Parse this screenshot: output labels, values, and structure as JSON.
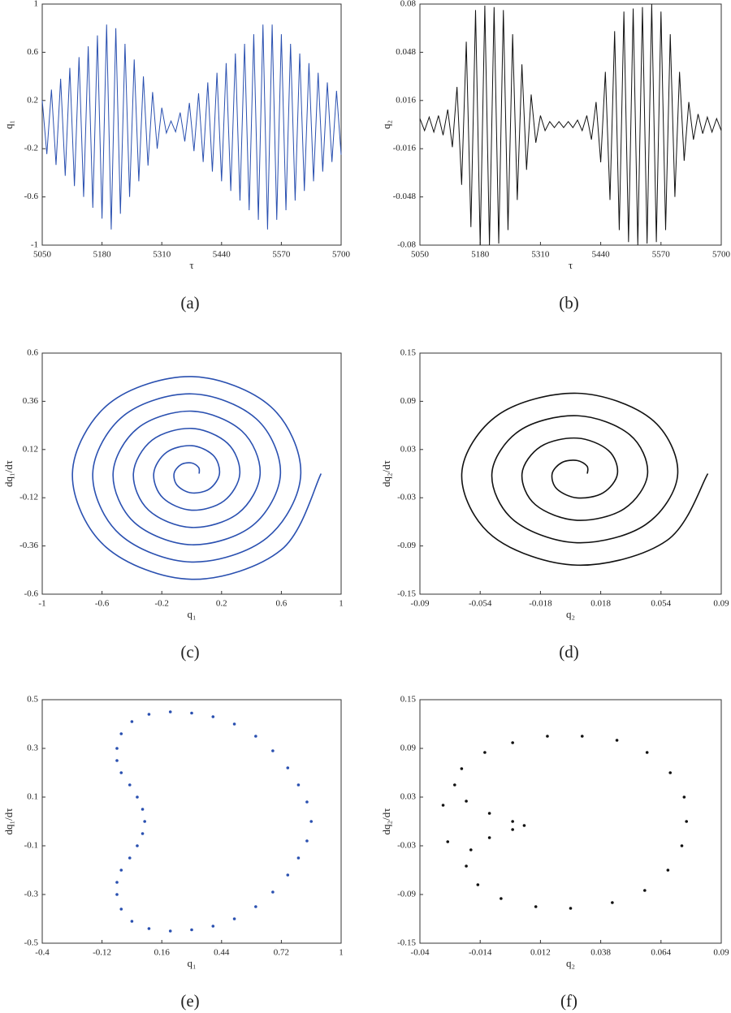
{
  "chart_data": [
    {
      "type": "line",
      "caption": "(a)",
      "xlabel": "τ",
      "ylabel": "q₁",
      "color": "#2a50b0",
      "smooth": false,
      "xlim": [
        5050,
        5700
      ],
      "xticks": [
        5050,
        5180,
        5310,
        5440,
        5570,
        5700
      ],
      "ylim": [
        -1,
        1
      ],
      "yticks": [
        -1,
        -0.6,
        -0.2,
        0.2,
        0.6,
        1
      ],
      "x": [
        5050,
        5060,
        5070,
        5080,
        5090,
        5100,
        5110,
        5120,
        5130,
        5140,
        5150,
        5160,
        5170,
        5180,
        5190,
        5200,
        5210,
        5220,
        5230,
        5240,
        5250,
        5260,
        5270,
        5280,
        5290,
        5300,
        5310,
        5320,
        5330,
        5340,
        5350,
        5360,
        5370,
        5380,
        5390,
        5400,
        5410,
        5420,
        5430,
        5440,
        5450,
        5460,
        5470,
        5480,
        5490,
        5500,
        5510,
        5520,
        5530,
        5540,
        5550,
        5560,
        5570,
        5580,
        5590,
        5600,
        5610,
        5620,
        5630,
        5640,
        5650,
        5660,
        5670,
        5680,
        5690,
        5700
      ],
      "values": [
        0.2,
        -0.245,
        0.29,
        -0.335,
        0.38,
        -0.425,
        0.47,
        -0.51,
        0.56,
        -0.6,
        0.65,
        -0.69,
        0.74,
        -0.78,
        0.83,
        -0.87,
        0.8,
        -0.74,
        0.67,
        -0.6,
        0.54,
        -0.47,
        0.4,
        -0.34,
        0.27,
        -0.2,
        0.14,
        -0.07,
        0.03,
        -0.06,
        0.1,
        -0.14,
        0.18,
        -0.22,
        0.26,
        -0.31,
        0.35,
        -0.39,
        0.43,
        -0.47,
        0.51,
        -0.55,
        0.59,
        -0.63,
        0.67,
        -0.71,
        0.75,
        -0.79,
        0.83,
        -0.87,
        0.83,
        -0.79,
        0.75,
        -0.71,
        0.67,
        -0.63,
        0.59,
        -0.55,
        0.51,
        -0.47,
        0.43,
        -0.39,
        0.35,
        -0.31,
        0.28,
        -0.25
      ]
    },
    {
      "type": "line",
      "caption": "(b)",
      "xlabel": "τ",
      "ylabel": "q₂",
      "color": "#111111",
      "smooth": false,
      "xlim": [
        5050,
        5700
      ],
      "xticks": [
        5050,
        5180,
        5310,
        5440,
        5570,
        5700
      ],
      "ylim": [
        -0.08,
        0.08
      ],
      "yticks": [
        -0.08,
        -0.048,
        -0.016,
        0.016,
        0.048,
        0.08
      ],
      "x": [
        5050,
        5060,
        5070,
        5080,
        5090,
        5100,
        5110,
        5120,
        5130,
        5140,
        5150,
        5160,
        5170,
        5180,
        5190,
        5200,
        5210,
        5220,
        5230,
        5240,
        5250,
        5260,
        5270,
        5280,
        5290,
        5300,
        5310,
        5320,
        5330,
        5340,
        5350,
        5360,
        5370,
        5380,
        5390,
        5400,
        5410,
        5420,
        5430,
        5440,
        5450,
        5460,
        5470,
        5480,
        5490,
        5500,
        5510,
        5520,
        5530,
        5540,
        5550,
        5560,
        5570,
        5580,
        5590,
        5600,
        5610,
        5620,
        5630,
        5640,
        5650,
        5660,
        5670,
        5680,
        5690,
        5700
      ],
      "values": [
        0.004,
        -0.004,
        0.005,
        -0.005,
        0.006,
        -0.007,
        0.01,
        -0.015,
        0.025,
        -0.04,
        0.055,
        -0.068,
        0.076,
        -0.08,
        0.079,
        -0.08,
        0.078,
        -0.079,
        0.076,
        -0.07,
        0.06,
        -0.05,
        0.04,
        -0.03,
        0.02,
        -0.012,
        0.006,
        -0.004,
        0.002,
        -0.002,
        0.002,
        -0.002,
        0.002,
        -0.002,
        0.003,
        -0.004,
        0.006,
        -0.01,
        0.015,
        -0.025,
        0.035,
        -0.05,
        0.062,
        -0.07,
        0.075,
        -0.078,
        0.077,
        -0.08,
        0.078,
        -0.079,
        0.08,
        -0.078,
        0.075,
        -0.07,
        0.06,
        -0.048,
        0.035,
        -0.024,
        0.015,
        -0.01,
        0.007,
        -0.006,
        0.005,
        -0.005,
        0.004,
        -0.004
      ]
    },
    {
      "type": "line",
      "caption": "(c)",
      "xlabel": "q₁",
      "ylabel": "dq₁/dτ",
      "color": "#2a50b0",
      "smooth": true,
      "xlim": [
        -1,
        1
      ],
      "xticks": [
        -1,
        -0.6,
        -0.2,
        0.2,
        0.6,
        1
      ],
      "ylim": [
        -0.6,
        0.6
      ],
      "yticks": [
        -0.6,
        -0.36,
        -0.12,
        0.12,
        0.36,
        0.6
      ],
      "x": [
        0.05,
        0.047,
        0,
        -0.071,
        -0.118,
        -0.095,
        0,
        0.119,
        0.186,
        0.144,
        0,
        -0.168,
        -0.254,
        -0.192,
        0,
        0.216,
        0.322,
        0.24,
        0,
        -0.264,
        -0.39,
        -0.288,
        0,
        0.312,
        0.458,
        0.336,
        0,
        -0.36,
        -0.526,
        -0.384,
        0,
        0.408,
        0.594,
        0.432,
        0,
        -0.456,
        -0.662,
        -0.48,
        0,
        0.504,
        0.73,
        0.528,
        0,
        -0.552,
        -0.798,
        -0.576,
        0,
        0.6,
        0.866
      ],
      "values": [
        0,
        0.03,
        0.053,
        0.045,
        0,
        -0.06,
        -0.096,
        -0.076,
        0,
        0.091,
        0.139,
        0.106,
        0,
        -0.121,
        -0.182,
        -0.136,
        0,
        0.151,
        0.225,
        0.167,
        0,
        -0.182,
        -0.268,
        -0.197,
        0,
        0.212,
        0.311,
        0.227,
        0,
        -0.243,
        -0.354,
        -0.258,
        0,
        0.273,
        0.397,
        0.288,
        0,
        -0.303,
        -0.44,
        -0.319,
        0,
        0.334,
        0.483,
        0.349,
        0,
        -0.364,
        -0.526,
        -0.379,
        0
      ]
    },
    {
      "type": "line",
      "caption": "(d)",
      "xlabel": "q₂",
      "ylabel": "dq₂/dτ",
      "color": "#111111",
      "smooth": true,
      "xlim": [
        -0.09,
        0.09
      ],
      "xticks": [
        -0.09,
        -0.054,
        -0.018,
        0.018,
        0.054,
        0.09
      ],
      "ylim": [
        -0.15,
        0.15
      ],
      "yticks": [
        -0.15,
        -0.09,
        -0.03,
        0.03,
        0.09,
        0.15
      ],
      "x": [
        0.01,
        0.0099,
        0.004,
        -0.005,
        -0.011,
        -0.0082,
        0.004,
        0.0194,
        0.028,
        0.0226,
        0.004,
        -0.0178,
        -0.029,
        -0.021,
        0.004,
        0.0321,
        0.046,
        0.0353,
        0.004,
        -0.0305,
        -0.047,
        -0.0337,
        0.004,
        0.0449,
        0.064,
        0.048,
        0.004,
        -0.0432,
        -0.065,
        -0.0464,
        0.004,
        0.0576,
        0.082
      ],
      "values": [
        0,
        0.0091,
        0.0163,
        0.014,
        0,
        -0.019,
        -0.0302,
        -0.0239,
        0,
        0.0288,
        0.0442,
        0.0338,
        0,
        -0.0387,
        -0.0581,
        -0.0436,
        0,
        0.0485,
        0.0721,
        0.0535,
        0,
        -0.0584,
        -0.086,
        -0.0633,
        0,
        0.0683,
        0.1,
        0.0732,
        0,
        -0.0781,
        -0.1139,
        -0.0831,
        0
      ]
    },
    {
      "type": "scatter",
      "caption": "(e)",
      "xlabel": "q₁",
      "ylabel": "dq₁/dτ",
      "color": "#2a50b0",
      "xlim": [
        -0.4,
        1
      ],
      "xticks": [
        -0.4,
        -0.12,
        0.16,
        0.44,
        0.72,
        1
      ],
      "ylim": [
        -0.5,
        0.5
      ],
      "yticks": [
        -0.5,
        -0.3,
        -0.1,
        0.1,
        0.3,
        0.5
      ],
      "x": [
        0.2,
        0.3,
        0.4,
        0.5,
        0.6,
        0.68,
        0.75,
        0.8,
        0.84,
        0.86,
        0.84,
        0.8,
        0.75,
        0.68,
        0.6,
        0.5,
        0.4,
        0.3,
        0.2,
        0.1,
        0.02,
        -0.03,
        -0.05,
        -0.05,
        -0.03,
        0.01,
        0.045,
        0.07,
        0.08,
        0.07,
        0.045,
        0.01,
        -0.03,
        -0.05,
        -0.05,
        -0.03,
        0.02,
        0.1
      ],
      "values": [
        0.45,
        0.445,
        0.43,
        0.4,
        0.35,
        0.29,
        0.22,
        0.15,
        0.08,
        0,
        -0.08,
        -0.15,
        -0.22,
        -0.29,
        -0.35,
        -0.4,
        -0.43,
        -0.445,
        -0.45,
        -0.44,
        -0.41,
        -0.36,
        -0.3,
        -0.25,
        -0.2,
        -0.15,
        -0.1,
        -0.05,
        0,
        0.05,
        0.1,
        0.15,
        0.2,
        0.25,
        0.3,
        0.36,
        0.41,
        0.44
      ]
    },
    {
      "type": "scatter",
      "caption": "(f)",
      "xlabel": "q₂",
      "ylabel": "dq₂/dτ",
      "color": "#111111",
      "xlim": [
        -0.04,
        0.09
      ],
      "xticks": [
        -0.04,
        -0.014,
        0.012,
        0.038,
        0.064,
        0.09
      ],
      "ylim": [
        -0.15,
        0.15
      ],
      "yticks": [
        -0.15,
        -0.09,
        -0.03,
        0.03,
        0.09,
        0.15
      ],
      "x": [
        0.03,
        0.045,
        0.058,
        0.068,
        0.074,
        0.075,
        0.073,
        0.067,
        0.057,
        0.043,
        0.025,
        0.01,
        -0.005,
        -0.015,
        -0.02,
        -0.018,
        -0.01,
        0,
        0.005,
        0,
        -0.01,
        -0.02,
        -0.025,
        -0.022,
        -0.012,
        0,
        0.015,
        -0.03,
        -0.028
      ],
      "values": [
        0.105,
        0.1,
        0.085,
        0.06,
        0.03,
        0,
        -0.03,
        -0.06,
        -0.085,
        -0.1,
        -0.107,
        -0.105,
        -0.095,
        -0.078,
        -0.055,
        -0.035,
        -0.02,
        -0.01,
        -0.005,
        0,
        0.01,
        0.025,
        0.045,
        0.065,
        0.085,
        0.097,
        0.105,
        0.02,
        -0.025
      ]
    }
  ]
}
